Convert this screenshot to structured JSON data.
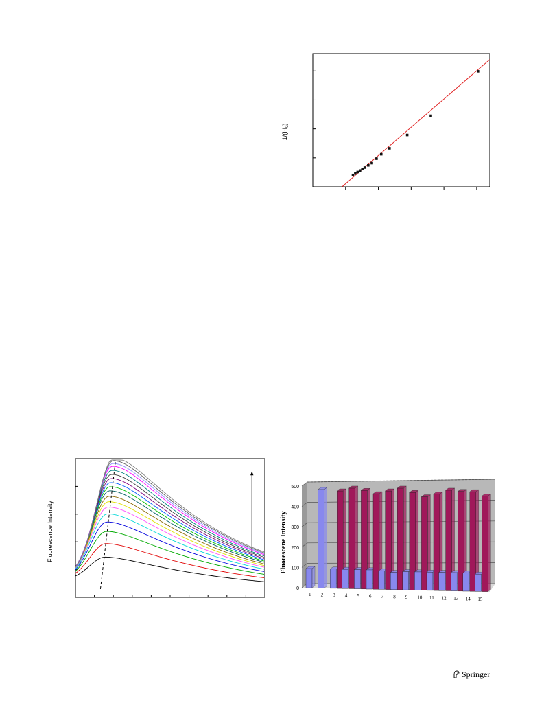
{
  "header": {
    "rule": true
  },
  "footer": {
    "publisher": "Springer",
    "logo_icon": "springer-horse-icon"
  },
  "chart_data": [
    {
      "type": "scatter",
      "ylabel": "1/(I-I",
      "ylabel_sub": "0",
      "ylabel_close": ")",
      "points": [
        {
          "x": 0.34,
          "y": 0.08
        },
        {
          "x": 0.36,
          "y": 0.09
        },
        {
          "x": 0.38,
          "y": 0.1
        },
        {
          "x": 0.4,
          "y": 0.11
        },
        {
          "x": 0.42,
          "y": 0.12
        },
        {
          "x": 0.44,
          "y": 0.13
        },
        {
          "x": 0.47,
          "y": 0.145
        },
        {
          "x": 0.5,
          "y": 0.16
        },
        {
          "x": 0.54,
          "y": 0.19
        },
        {
          "x": 0.58,
          "y": 0.22
        },
        {
          "x": 0.65,
          "y": 0.26
        },
        {
          "x": 0.8,
          "y": 0.35
        },
        {
          "x": 1.0,
          "y": 0.48
        },
        {
          "x": 1.4,
          "y": 0.78
        }
      ],
      "fit_line": {
        "x1": 0.0,
        "y1": -0.17,
        "x2": 1.5,
        "y2": 0.86
      },
      "xlim": [
        0,
        1.5
      ],
      "ylim": [
        0,
        0.9
      ],
      "line_color": "#e02020",
      "marker_color": "#111111"
    },
    {
      "type": "line",
      "ylabel": "Fluorescence Intensity",
      "xlim": [
        400,
        650
      ],
      "ylim": [
        0,
        1000
      ],
      "arrow": "up",
      "series_colors": [
        "#000000",
        "#e00000",
        "#00aa00",
        "#0000dd",
        "#00d8d8",
        "#ff50ff",
        "#e0e000",
        "#8a6a00",
        "#006060",
        "#00c000",
        "#0060ff",
        "#800080",
        "#404040",
        "#008080",
        "#ff00ff",
        "#9090ff",
        "#606060",
        "#808080"
      ],
      "peaks": [
        200,
        300,
        390,
        460,
        520,
        570,
        610,
        650,
        690,
        720,
        750,
        780,
        810,
        840,
        870,
        890,
        910,
        930
      ],
      "peak_shift_line": true
    },
    {
      "type": "bar",
      "ylabel": "Fluorescene Intensity",
      "categories": [
        "1",
        "2",
        "3",
        "4",
        "5",
        "6",
        "7",
        "8",
        "9",
        "10",
        "11",
        "12",
        "13",
        "14",
        "15"
      ],
      "yticks": [
        "0",
        "100",
        "200",
        "300",
        "400",
        "500"
      ],
      "ylim": [
        0,
        500
      ],
      "series": [
        {
          "color": "#8888ee",
          "values": [
            95,
            485,
            95,
            95,
            95,
            95,
            90,
            85,
            90,
            90,
            90,
            90,
            90,
            90,
            85
          ]
        },
        {
          "color": "#a0185a",
          "values": [
            null,
            null,
            480,
            495,
            485,
            470,
            485,
            500,
            480,
            460,
            475,
            495,
            490,
            490,
            470
          ]
        }
      ]
    }
  ]
}
